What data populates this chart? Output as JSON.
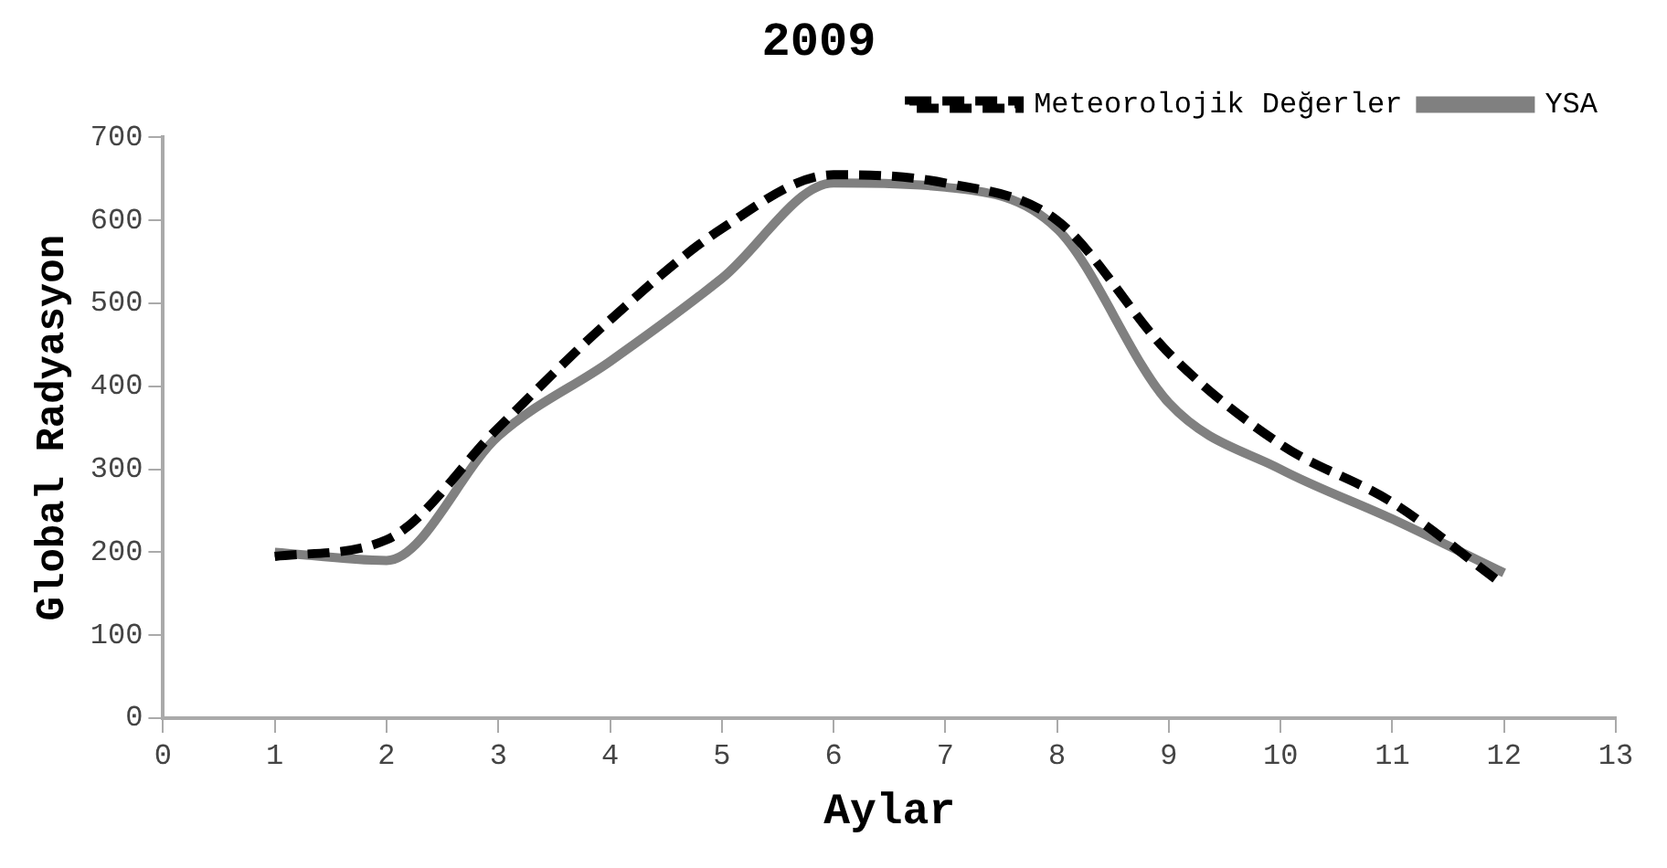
{
  "chart_data": {
    "type": "line",
    "title": "2009",
    "xlabel": "Aylar",
    "ylabel": "Global Radyasyon",
    "x": [
      1,
      2,
      3,
      4,
      5,
      6,
      7,
      8,
      9,
      10,
      11,
      12
    ],
    "series": [
      {
        "name": "Meteorolojik Değerler",
        "color": "#000000",
        "line_style": "dashed",
        "values": [
          195,
          215,
          350,
          480,
          590,
          655,
          645,
          600,
          440,
          330,
          260,
          160
        ]
      },
      {
        "name": "YSA",
        "color": "#808080",
        "line_style": "solid",
        "values": [
          200,
          190,
          340,
          430,
          530,
          645,
          640,
          590,
          380,
          300,
          240,
          175
        ]
      }
    ],
    "xlim": [
      0,
      13
    ],
    "xticks": [
      0,
      1,
      2,
      3,
      4,
      5,
      6,
      7,
      8,
      9,
      10,
      11,
      12,
      13
    ],
    "ylim": [
      0,
      700
    ],
    "yticks": [
      0,
      100,
      200,
      300,
      400,
      500,
      600,
      700
    ],
    "grid": false,
    "legend": "top right",
    "marker": "none"
  }
}
